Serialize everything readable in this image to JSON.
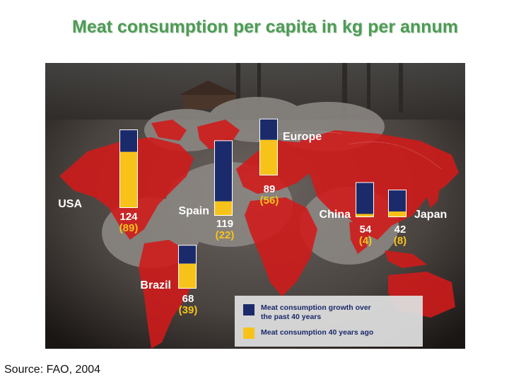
{
  "title": "Meat consumption per capita in kg per annum",
  "source": "Source: FAO, 2004",
  "colors": {
    "title": "#4e9b55",
    "growth": "#1b2a6b",
    "past": "#f7c31a",
    "map": "#d21a1a"
  },
  "legend": {
    "growth_label_line1": "Meat consumption growth over",
    "growth_label_line2": "the past 40 years",
    "past_label": "Meat consumption 40 years ago"
  },
  "chart_data": {
    "type": "bar",
    "title": "Meat consumption per capita in kg per annum",
    "categories": [
      "USA",
      "Europe",
      "Spain",
      "Brazil",
      "China",
      "Japan"
    ],
    "series": [
      {
        "name": "Meat consumption 40 years ago",
        "values": [
          89,
          56,
          22,
          39,
          4,
          8
        ]
      },
      {
        "name": "Meat consumption growth over the past 40 years",
        "values": [
          35,
          33,
          97,
          29,
          50,
          34
        ]
      }
    ],
    "totals": [
      124,
      89,
      119,
      68,
      54,
      42
    ],
    "total_labels": [
      "124",
      "89",
      "119",
      "68",
      "54",
      "42"
    ],
    "past_labels": [
      "(89)",
      "(56)",
      "(22)",
      "(39)",
      "(4)",
      "(8)"
    ]
  }
}
